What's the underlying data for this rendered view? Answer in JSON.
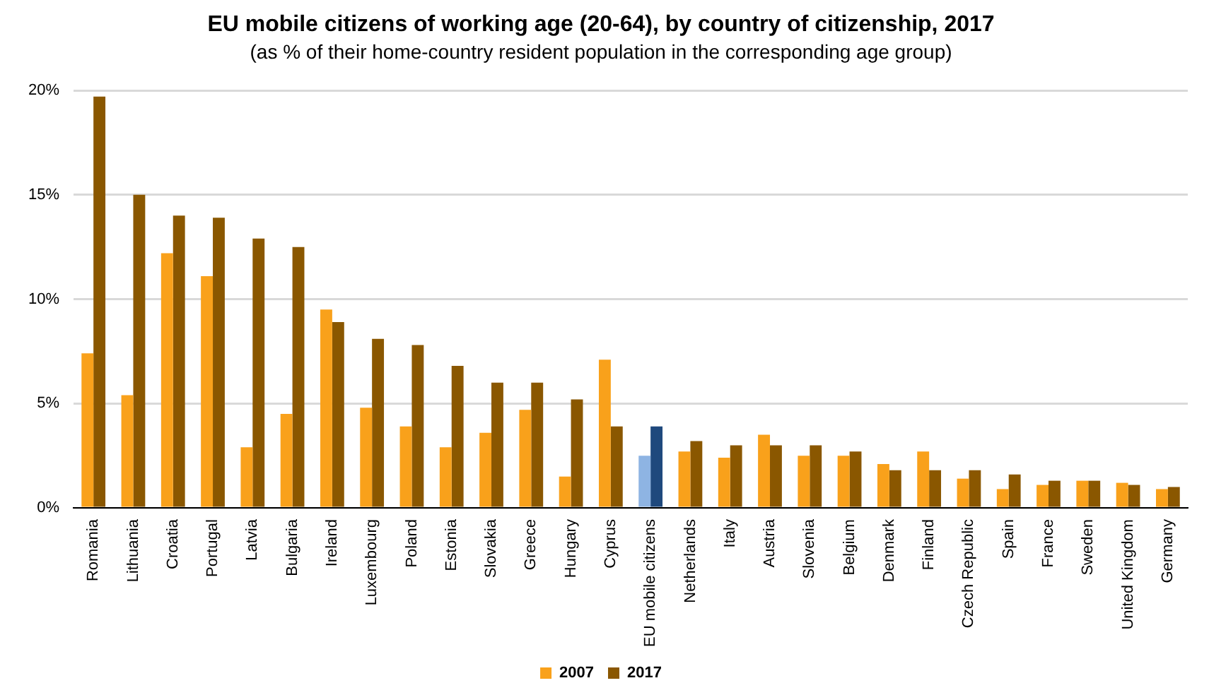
{
  "chart_data": {
    "type": "bar",
    "title": "EU mobile citizens of working age (20-64), by country of citizenship, 2017",
    "subtitle": "(as % of their home-country resident population in the corresponding age group)",
    "categories": [
      "Romania",
      "Lithuania",
      "Croatia",
      "Portugal",
      "Latvia",
      "Bulgaria",
      "Ireland",
      "Luxembourg",
      "Poland",
      "Estonia",
      "Slovakia",
      "Greece",
      "Hungary",
      "Cyprus",
      "EU mobile citizens",
      "Netherlands",
      "Italy",
      "Austria",
      "Slovenia",
      "Belgium",
      "Denmark",
      "Finland",
      "Czech Republic",
      "Spain",
      "France",
      "Sweden",
      "United Kingdom",
      "Germany"
    ],
    "series": [
      {
        "name": "2007",
        "color": "#f9a11b",
        "colors": [
          "#f9a11b",
          "#f9a11b",
          "#f9a11b",
          "#f9a11b",
          "#f9a11b",
          "#f9a11b",
          "#f9a11b",
          "#f9a11b",
          "#f9a11b",
          "#f9a11b",
          "#f9a11b",
          "#f9a11b",
          "#f9a11b",
          "#f9a11b",
          "#8eb4e3",
          "#f9a11b",
          "#f9a11b",
          "#f9a11b",
          "#f9a11b",
          "#f9a11b",
          "#f9a11b",
          "#f9a11b",
          "#f9a11b",
          "#f9a11b",
          "#f9a11b",
          "#f9a11b",
          "#f9a11b",
          "#f9a11b"
        ],
        "values": [
          7.4,
          5.4,
          12.2,
          11.1,
          2.9,
          4.5,
          9.5,
          4.8,
          3.9,
          2.9,
          3.6,
          4.7,
          1.5,
          7.1,
          2.5,
          2.7,
          2.4,
          3.5,
          2.5,
          2.5,
          2.1,
          2.7,
          1.4,
          0.9,
          1.1,
          1.3,
          1.2,
          0.9
        ]
      },
      {
        "name": "2017",
        "color": "#8a5700",
        "colors": [
          "#8a5700",
          "#8a5700",
          "#8a5700",
          "#8a5700",
          "#8a5700",
          "#8a5700",
          "#8a5700",
          "#8a5700",
          "#8a5700",
          "#8a5700",
          "#8a5700",
          "#8a5700",
          "#8a5700",
          "#8a5700",
          "#1f497d",
          "#8a5700",
          "#8a5700",
          "#8a5700",
          "#8a5700",
          "#8a5700",
          "#8a5700",
          "#8a5700",
          "#8a5700",
          "#8a5700",
          "#8a5700",
          "#8a5700",
          "#8a5700",
          "#8a5700"
        ],
        "values": [
          19.7,
          15.0,
          14.0,
          13.9,
          12.9,
          12.5,
          8.9,
          8.1,
          7.8,
          6.8,
          6.0,
          6.0,
          5.2,
          3.9,
          3.9,
          3.2,
          3.0,
          3.0,
          3.0,
          2.7,
          1.8,
          1.8,
          1.8,
          1.6,
          1.3,
          1.3,
          1.1,
          1.0
        ]
      }
    ],
    "ylim": [
      0,
      20
    ],
    "yticks": [
      {
        "value": 0,
        "label": "0%"
      },
      {
        "value": 5,
        "label": "5%"
      },
      {
        "value": 10,
        "label": "10%"
      },
      {
        "value": 15,
        "label": "15%"
      },
      {
        "value": 20,
        "label": "20%"
      }
    ],
    "grid": "y",
    "legend": "bottom"
  }
}
